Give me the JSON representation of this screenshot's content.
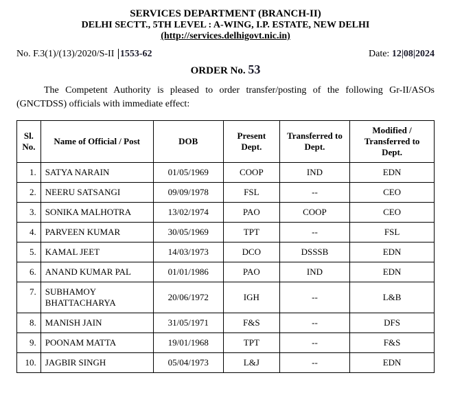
{
  "header": {
    "line1": "SERVICES DEPARTMENT (BRANCH-II)",
    "line2": "DELHI SECTT., 5TH LEVEL : A-WING, I.P. ESTATE, NEW DELHI",
    "line3": "(http://services.delhigovt.nic.in)"
  },
  "ref": {
    "prefix": "No. F.3(1)/(13)/2020/S-II",
    "handwritten_no": "1553-62",
    "date_label": "Date:",
    "date_value": "12|08|2024"
  },
  "order": {
    "label": "ORDER No.",
    "number": "53"
  },
  "preamble": "The Competent Authority is pleased to order transfer/posting of the following Gr-II/ASOs (GNCTDSS) officials with immediate effect:",
  "table": {
    "columns": [
      "Sl. No.",
      "Name of Official / Post",
      "DOB",
      "Present Dept.",
      "Transferred to Dept.",
      "Modified / Transferred to Dept."
    ],
    "rows": [
      {
        "sl": "1.",
        "name": "SATYA NARAIN",
        "dob": "01/05/1969",
        "present": "COOP",
        "transferred": "IND",
        "modified": "EDN"
      },
      {
        "sl": "2.",
        "name": "NEERU SATSANGI",
        "dob": "09/09/1978",
        "present": "FSL",
        "transferred": "--",
        "modified": "CEO"
      },
      {
        "sl": "3.",
        "name": "SONIKA MALHOTRA",
        "dob": "13/02/1974",
        "present": "PAO",
        "transferred": "COOP",
        "modified": "CEO"
      },
      {
        "sl": "4.",
        "name": "PARVEEN KUMAR",
        "dob": "30/05/1969",
        "present": "TPT",
        "transferred": "--",
        "modified": "FSL"
      },
      {
        "sl": "5.",
        "name": "KAMAL JEET",
        "dob": "14/03/1973",
        "present": "DCO",
        "transferred": "DSSSB",
        "modified": "EDN"
      },
      {
        "sl": "6.",
        "name": "ANAND KUMAR PAL",
        "dob": "01/01/1986",
        "present": "PAO",
        "transferred": "IND",
        "modified": "EDN"
      },
      {
        "sl": "7.",
        "name": "SUBHAMOY BHATTACHARYA",
        "dob": "20/06/1972",
        "present": "IGH",
        "transferred": "--",
        "modified": "L&B"
      },
      {
        "sl": "8.",
        "name": "MANISH JAIN",
        "dob": "31/05/1971",
        "present": "F&S",
        "transferred": "--",
        "modified": "DFS"
      },
      {
        "sl": "9.",
        "name": "POONAM MATTA",
        "dob": "19/01/1968",
        "present": "TPT",
        "transferred": "--",
        "modified": "F&S"
      },
      {
        "sl": "10.",
        "name": "JAGBIR SINGH",
        "dob": "05/04/1973",
        "present": "L&J",
        "transferred": "--",
        "modified": "EDN"
      }
    ]
  }
}
